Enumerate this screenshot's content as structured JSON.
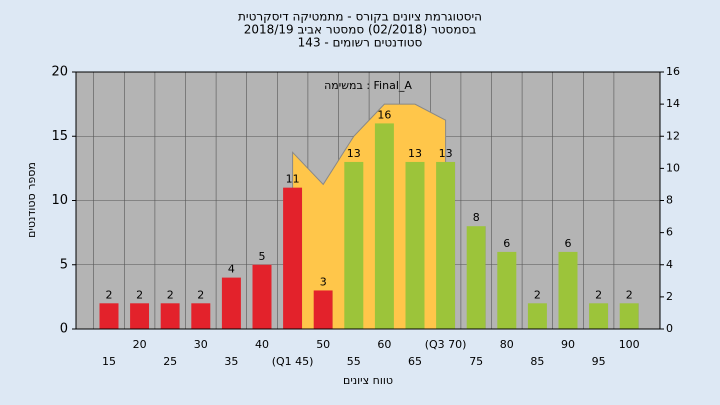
{
  "chart_data": {
    "type": "bar",
    "title": "היסטוגרמת ציונים בקורס - מתמטיקה דיסקרטית",
    "subtitle": "בסמסטר (02/2018)  סמסטר אביב 2018/19",
    "subtitle2": "סטודנטים רשומים - 143",
    "annotation": "במשימה : Final_A",
    "x_label": "טווח ציונים",
    "y_label": "מספר סטודנטים",
    "categories": [
      "15",
      "20",
      "25",
      "30",
      "35",
      "40",
      "(Q1 45)",
      "50",
      "55",
      "60",
      "65",
      "(Q3 70)",
      "75",
      "80",
      "85",
      "90",
      "95",
      "100"
    ],
    "series": [
      {
        "values": [
          2,
          2,
          2,
          2,
          4,
          5,
          11,
          3,
          null,
          null,
          null,
          null,
          null,
          null,
          null,
          null,
          null,
          null
        ],
        "color": "#e3222b"
      },
      {
        "values": [
          null,
          null,
          null,
          null,
          null,
          null,
          null,
          null,
          13,
          16,
          13,
          13,
          8,
          6,
          2,
          6,
          2,
          2
        ],
        "color": "#9cc43a"
      },
      {
        "type": "area",
        "axis": "y2",
        "values": [
          null,
          null,
          null,
          null,
          null,
          null,
          11,
          9,
          12,
          14,
          14,
          13,
          null,
          null,
          null,
          null,
          null,
          null
        ],
        "color": "#ffc64a"
      }
    ],
    "ylim": [
      0,
      20
    ],
    "yticks": [
      0,
      5,
      10,
      15,
      20
    ],
    "y2lim": [
      0,
      16
    ],
    "y2ticks": [
      0,
      2,
      4,
      6,
      8,
      10,
      12,
      14,
      16
    ],
    "grid": true
  }
}
